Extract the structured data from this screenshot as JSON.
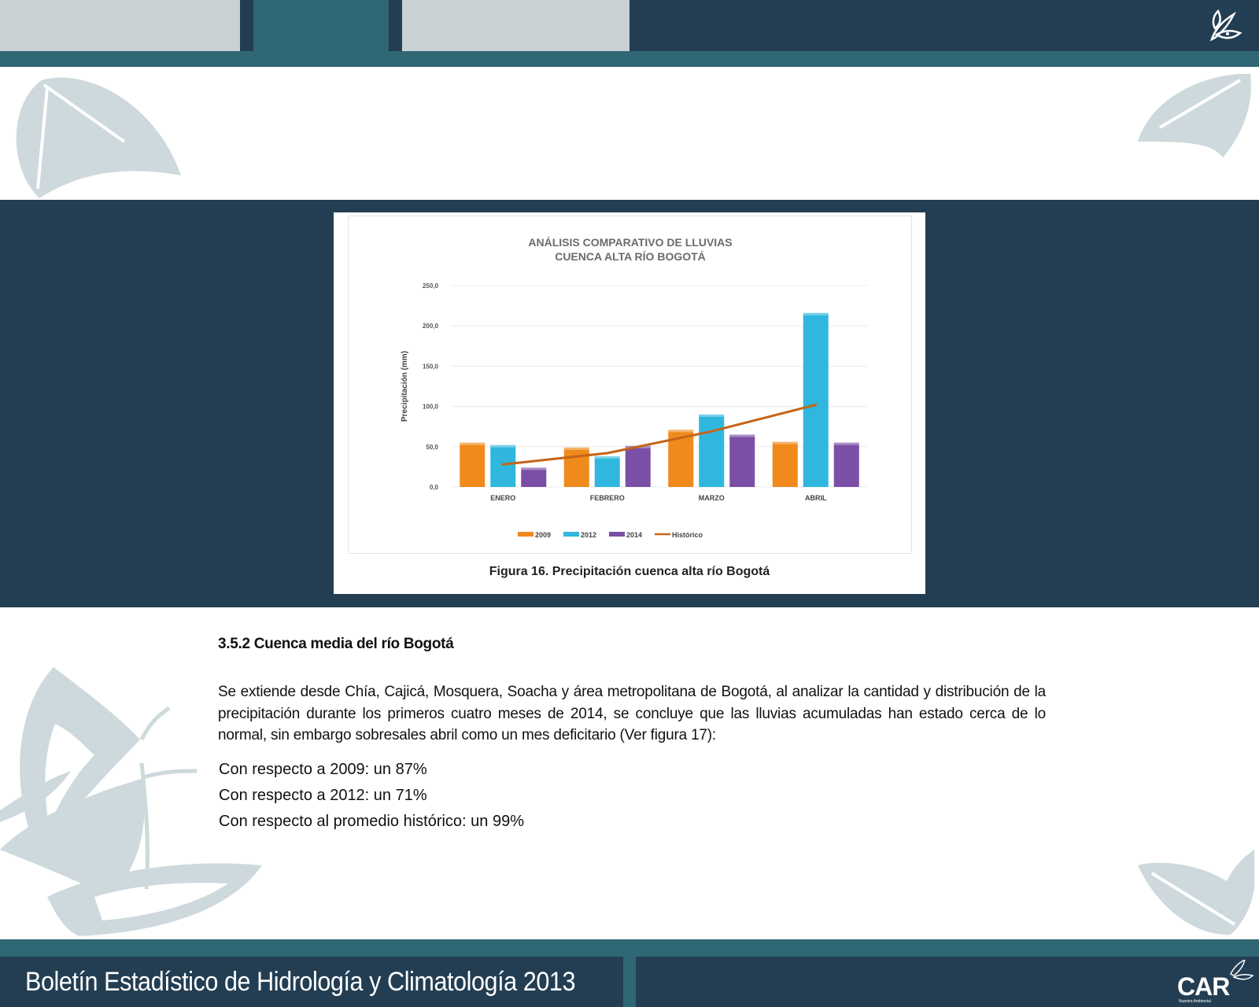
{
  "header": {
    "tabs": [
      "",
      "",
      ""
    ]
  },
  "figure": {
    "caption": "Figura 16. Precipitación cuenca alta río Bogotá"
  },
  "chart_data": {
    "type": "bar",
    "title": "ANÁLISIS COMPARATIVO DE LLUVIAS",
    "subtitle": "CUENCA ALTA RÍO BOGOTÁ",
    "xlabel": "",
    "ylabel": "Precipitación (mm)",
    "ylim": [
      0,
      250
    ],
    "yticks": [
      "0,0",
      "50,0",
      "100,0",
      "150,0",
      "200,0",
      "250,0"
    ],
    "categories": [
      "ENERO",
      "FEBRERO",
      "MARZO",
      "ABRIL"
    ],
    "series": [
      {
        "name": "2009",
        "kind": "bar",
        "color": "#f08a1c",
        "values": [
          55,
          49,
          71,
          56
        ]
      },
      {
        "name": "2012",
        "kind": "bar",
        "color": "#2fb7de",
        "values": [
          52,
          38,
          90,
          216
        ]
      },
      {
        "name": "2014",
        "kind": "bar",
        "color": "#7b4fa6",
        "values": [
          24,
          51,
          65,
          55
        ]
      },
      {
        "name": "Histórico",
        "kind": "line",
        "color": "#c4651a",
        "values": [
          28,
          42,
          69,
          102
        ]
      }
    ],
    "grid": true,
    "legend": "bottom"
  },
  "section": {
    "heading": "3.5.2 Cuenca media del río Bogotá",
    "paragraph": "Se extiende desde Chía, Cajicá, Mosquera, Soacha y área metropolitana de Bogotá, al analizar la cantidad y distribución de la precipitación durante los primeros cuatro meses de 2014,  se concluye que las lluvias acumuladas han estado cerca de lo normal, sin embargo sobresales abril como un mes deficitario (Ver figura 17):",
    "stats": [
      "Con respecto a 2009: un 87%",
      "Con respecto a 2012: un 71%",
      "Con respecto al promedio histórico: un 99%"
    ]
  },
  "footer": {
    "title": "Boletín Estadístico de Hidrología y Climatología 2013",
    "logo_text": "CAR",
    "logo_subtext": "Nuestra Ambiental"
  },
  "colors": {
    "navy": "#233e52",
    "teal": "#2f6775",
    "light_gray": "#c9d1d4",
    "leaf": "#cdd9dc"
  }
}
